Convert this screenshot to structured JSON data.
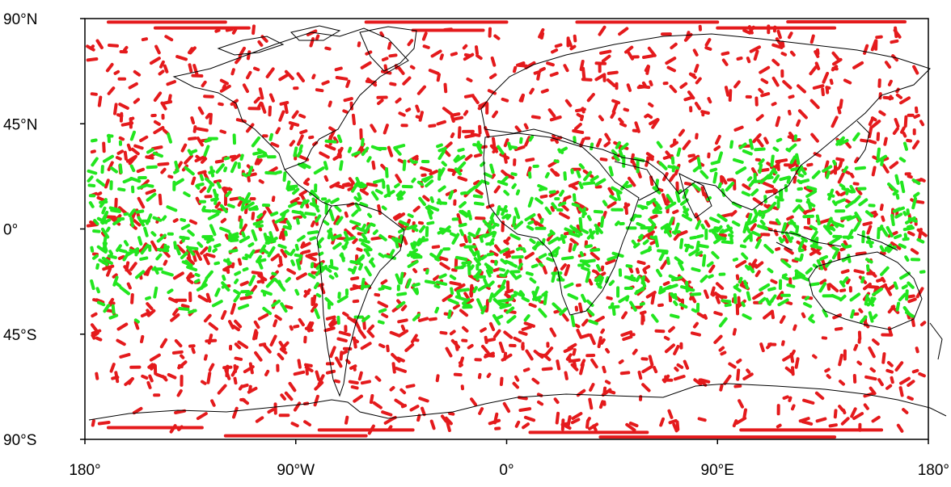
{
  "map": {
    "projection": "cylindrical-equidistant",
    "lon_range": [
      -180,
      180
    ],
    "lat_range": [
      -90,
      90
    ],
    "background": "#ffffff",
    "coastline_color": "#000000"
  },
  "axes": {
    "y_ticks": [
      {
        "value": 90,
        "label": "90°N"
      },
      {
        "value": 45,
        "label": "45°N"
      },
      {
        "value": 0,
        "label": "0°"
      },
      {
        "value": -45,
        "label": "45°S"
      },
      {
        "value": -90,
        "label": "90°S"
      }
    ],
    "x_ticks": [
      {
        "value": -180,
        "label": "180°"
      },
      {
        "value": -90,
        "label": "90°W"
      },
      {
        "value": 0,
        "label": "0°"
      },
      {
        "value": 90,
        "label": "90°E"
      },
      {
        "value": 180,
        "label": "180°"
      }
    ]
  },
  "chart_data": {
    "type": "scatter",
    "xlim": [
      -180,
      180
    ],
    "ylim": [
      -90,
      90
    ],
    "series": [
      {
        "color": "#e41a1c",
        "lat_extent": [
          -90,
          90
        ],
        "marker": "short-track",
        "sample_tracks": [
          [
            -150,
            72
          ],
          [
            -120,
            60
          ],
          [
            -95,
            65
          ],
          [
            -60,
            70
          ],
          [
            -30,
            75
          ],
          [
            10,
            70
          ],
          [
            40,
            65
          ],
          [
            70,
            72
          ],
          [
            110,
            68
          ],
          [
            150,
            70
          ],
          [
            170,
            55
          ],
          [
            -160,
            30
          ],
          [
            -100,
            25
          ],
          [
            -40,
            30
          ],
          [
            20,
            28
          ],
          [
            80,
            30
          ],
          [
            140,
            25
          ],
          [
            -140,
            -20
          ],
          [
            -80,
            -15
          ],
          [
            -20,
            -25
          ],
          [
            40,
            -20
          ],
          [
            100,
            -15
          ],
          [
            160,
            -25
          ],
          [
            -150,
            -55
          ],
          [
            -110,
            -60
          ],
          [
            -60,
            -50
          ],
          [
            0,
            -55
          ],
          [
            60,
            -60
          ],
          [
            120,
            -55
          ],
          [
            170,
            -65
          ],
          [
            -130,
            -80
          ],
          [
            -50,
            -82
          ],
          [
            30,
            -80
          ],
          [
            100,
            -82
          ],
          [
            150,
            -80
          ]
        ]
      },
      {
        "color": "#22e61f",
        "lat_extent": [
          -40,
          40
        ],
        "marker": "short-track",
        "sample_tracks": [
          [
            -170,
            30
          ],
          [
            -140,
            20
          ],
          [
            -110,
            10
          ],
          [
            -80,
            25
          ],
          [
            -50,
            15
          ],
          [
            -20,
            30
          ],
          [
            10,
            5
          ],
          [
            40,
            20
          ],
          [
            70,
            10
          ],
          [
            100,
            25
          ],
          [
            130,
            15
          ],
          [
            160,
            30
          ],
          [
            -160,
            -10
          ],
          [
            -130,
            -25
          ],
          [
            -100,
            -5
          ],
          [
            -70,
            -30
          ],
          [
            -40,
            -15
          ],
          [
            -10,
            -25
          ],
          [
            20,
            -5
          ],
          [
            50,
            -30
          ],
          [
            80,
            -10
          ],
          [
            110,
            -25
          ],
          [
            140,
            -5
          ],
          [
            170,
            -20
          ]
        ]
      }
    ]
  }
}
